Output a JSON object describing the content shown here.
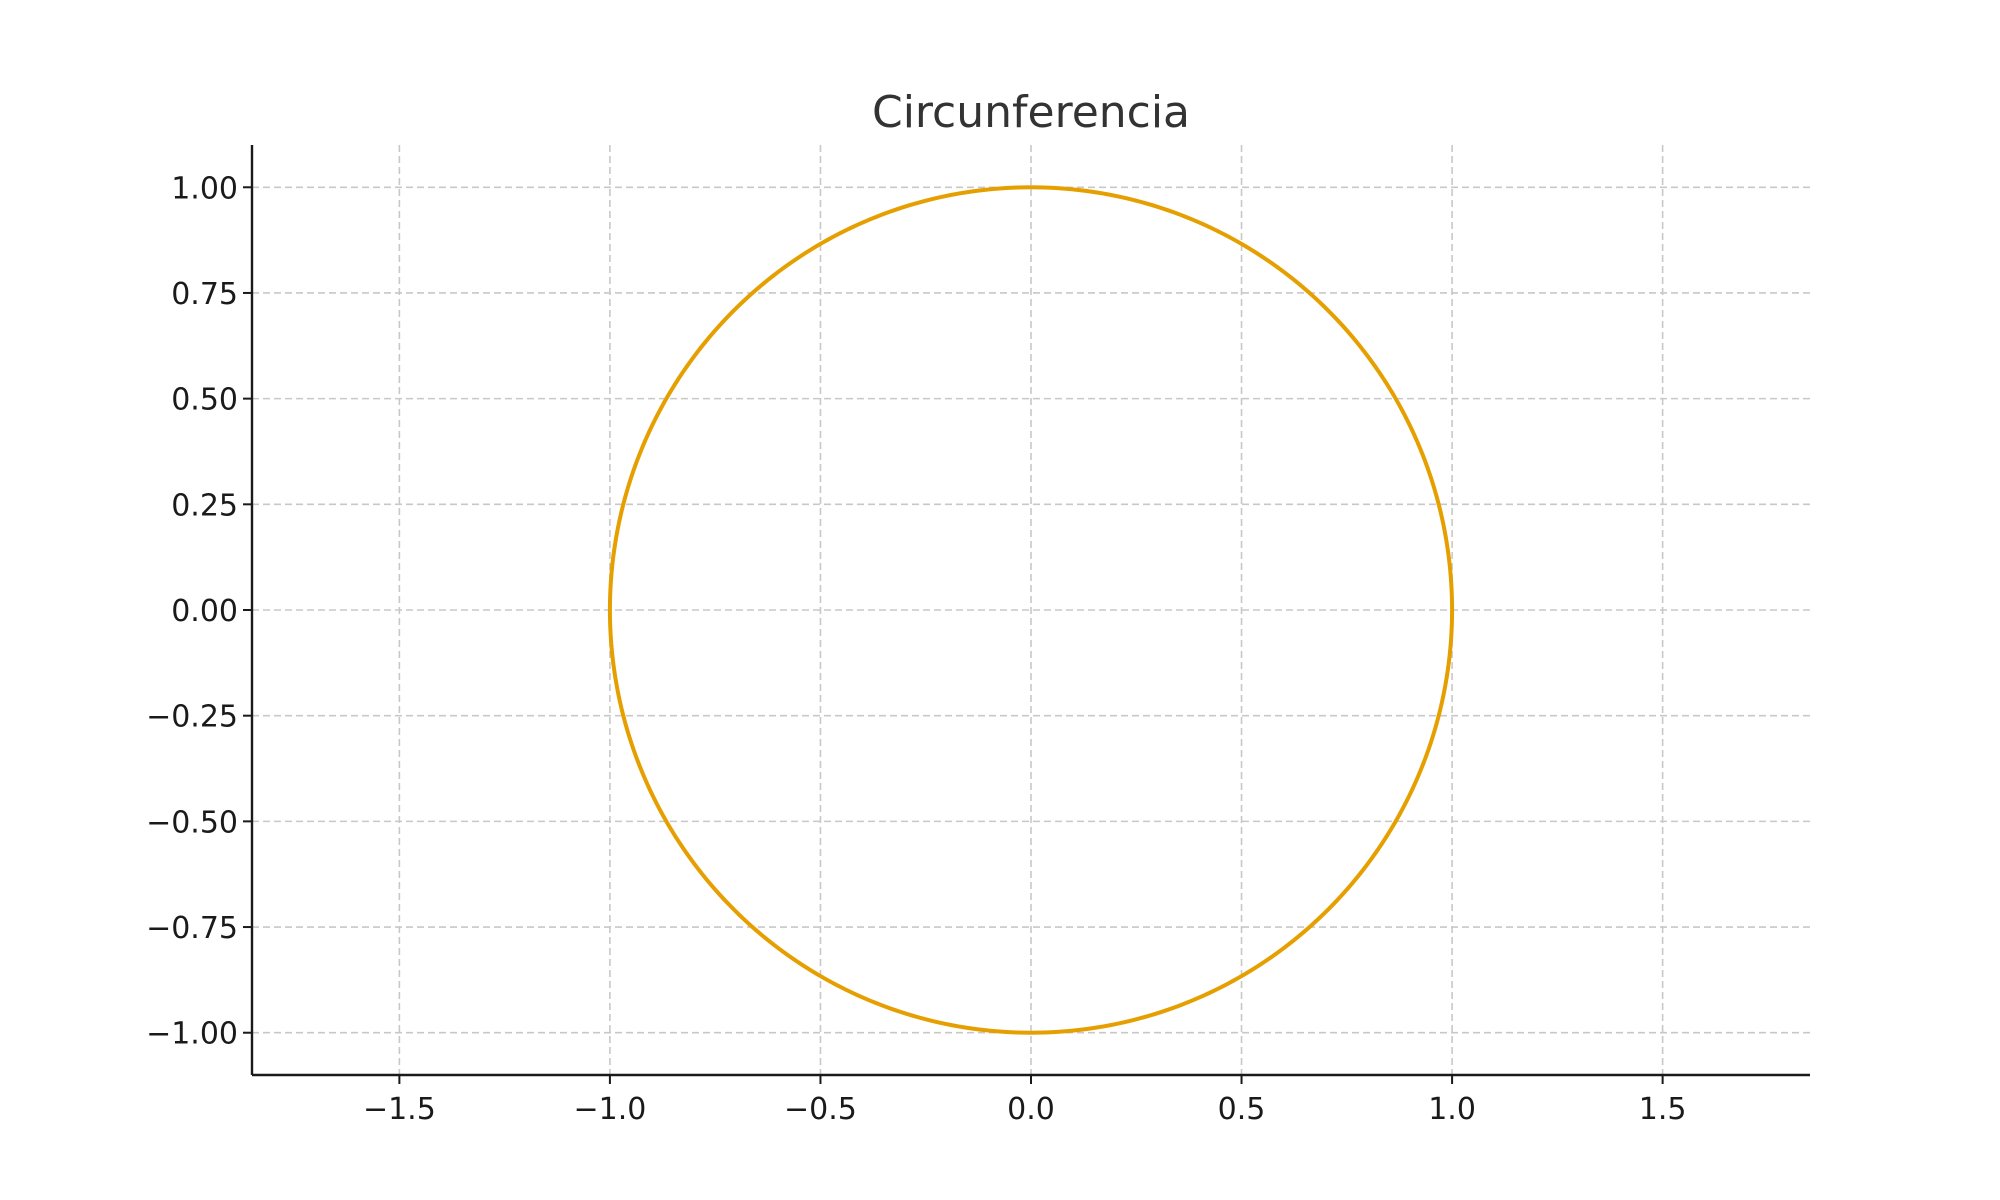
{
  "chart_data": {
    "type": "line",
    "title": "Circunferencia",
    "xlabel": "",
    "ylabel": "",
    "xlim": [
      -1.85,
      1.85
    ],
    "ylim": [
      -1.1,
      1.1
    ],
    "x_ticks": [
      -1.5,
      -1.0,
      -0.5,
      0.0,
      0.5,
      1.0,
      1.5
    ],
    "x_tick_labels": [
      "−1.5",
      "−1.0",
      "−0.5",
      "0.0",
      "0.5",
      "1.0",
      "1.5"
    ],
    "y_ticks": [
      1.0,
      0.75,
      0.5,
      0.25,
      0.0,
      -0.25,
      -0.5,
      -0.75,
      -1.0
    ],
    "y_tick_labels": [
      "1.00",
      "0.75",
      "0.50",
      "0.25",
      "0.00",
      "−0.25",
      "−0.50",
      "−0.75",
      "−1.00"
    ],
    "grid": true,
    "series": [
      {
        "function": "x = cos(t), y = sin(t), t in [0, 2π]",
        "center": [
          0,
          0
        ],
        "radius": 1,
        "color": "#E69F00"
      }
    ]
  }
}
